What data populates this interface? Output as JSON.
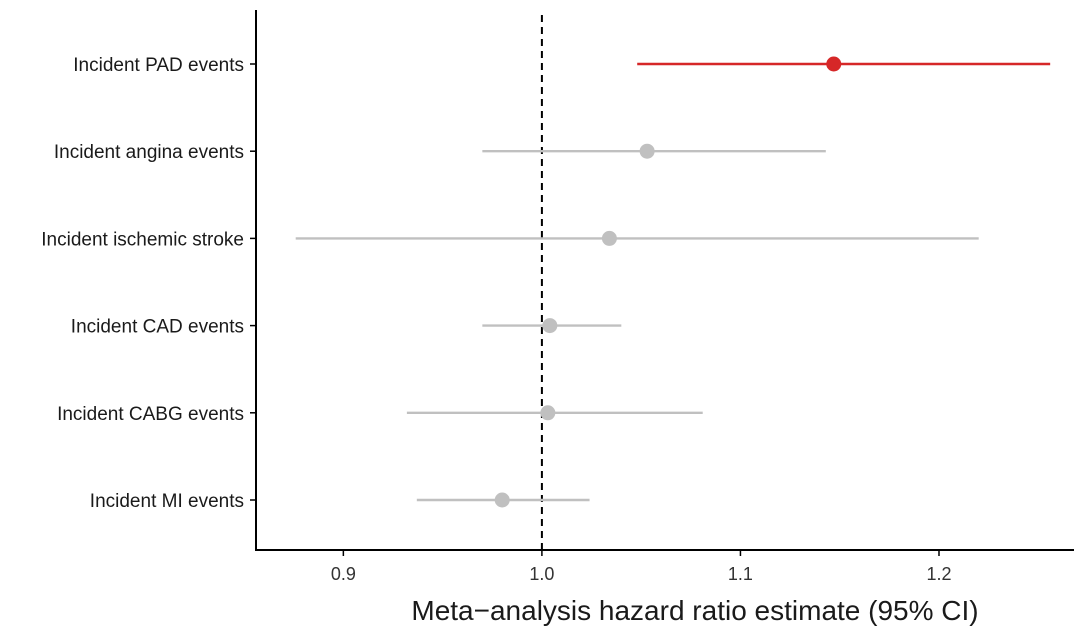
{
  "chart_data": {
    "type": "forest",
    "title": "",
    "xlabel": "Meta−analysis hazard ratio estimate (95% CI)",
    "ylabel": "",
    "xlim": [
      0.856,
      1.268
    ],
    "xticks": [
      {
        "value": 0.9,
        "label": "0.9"
      },
      {
        "value": 1.0,
        "label": "1.0"
      },
      {
        "value": 1.1,
        "label": "1.1"
      },
      {
        "value": 1.2,
        "label": "1.2"
      }
    ],
    "reference_line": 1.0,
    "grid": false,
    "categories": [
      "Incident PAD events",
      "Incident angina events",
      "Incident ischemic stroke",
      "Incident CAD events",
      "Incident CABG events",
      "Incident MI events"
    ],
    "estimates": [
      1.147,
      1.053,
      1.034,
      1.004,
      1.003,
      0.98
    ],
    "ci_lower": [
      1.048,
      0.97,
      0.876,
      0.97,
      0.932,
      0.937
    ],
    "ci_upper": [
      1.256,
      1.143,
      1.22,
      1.04,
      1.081,
      1.024
    ],
    "highlighted": [
      true,
      false,
      false,
      false,
      false,
      false
    ],
    "colors": {
      "highlight": "#d62728",
      "default": "#c0c0c0",
      "axis": "#000000",
      "reference": "#000000"
    }
  }
}
